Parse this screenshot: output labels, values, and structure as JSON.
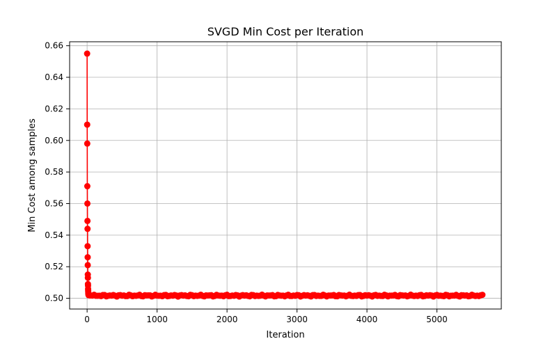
{
  "chart_data": {
    "type": "line",
    "title": "SVGD Min Cost per Iteration",
    "xlabel": "Iteration",
    "ylabel": "Min Cost among samples",
    "xlim": [
      -250,
      5920
    ],
    "ylim": [
      0.4932,
      0.6625
    ],
    "xticks": [
      0,
      1000,
      2000,
      3000,
      4000,
      5000
    ],
    "xtick_labels": [
      "0",
      "1000",
      "2000",
      "3000",
      "4000",
      "5000"
    ],
    "yticks": [
      0.5,
      0.52,
      0.54,
      0.56,
      0.58,
      0.6,
      0.62,
      0.64,
      0.66
    ],
    "ytick_labels": [
      "0.50",
      "0.52",
      "0.54",
      "0.56",
      "0.58",
      "0.60",
      "0.62",
      "0.64",
      "0.66"
    ],
    "grid": true,
    "series": [
      {
        "color": "#ff0000",
        "marker": "circle",
        "x": [
          0,
          1,
          2,
          3,
          4,
          5,
          6,
          7,
          8,
          9,
          10,
          11,
          12,
          13,
          14,
          15,
          16,
          17,
          18,
          19,
          20,
          25,
          30,
          40,
          50
        ],
        "y": [
          0.655,
          0.61,
          0.598,
          0.571,
          0.56,
          0.549,
          0.544,
          0.533,
          0.526,
          0.521,
          0.515,
          0.513,
          0.509,
          0.508,
          0.506,
          0.505,
          0.504,
          0.503,
          0.503,
          0.5025,
          0.502,
          0.502,
          0.502,
          0.5018,
          0.5018
        ],
        "tail": {
          "x_start": 50,
          "x_end": 5650,
          "step": 25,
          "y_center": 0.5017,
          "y_jitter": 0.0006
        }
      }
    ]
  }
}
